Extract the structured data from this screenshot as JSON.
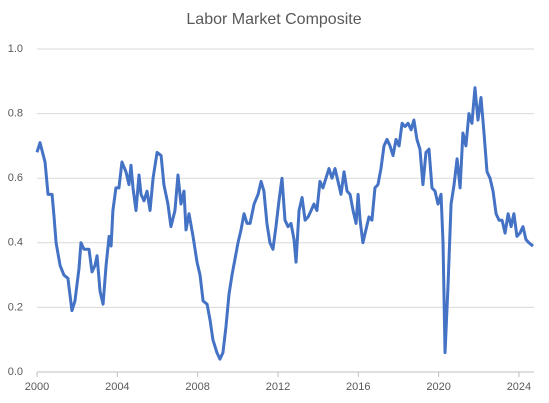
{
  "chart_data": {
    "type": "line",
    "title": "Labor Market Composite",
    "x": [
      2000.0,
      2000.15,
      2000.4,
      2000.55,
      2000.75,
      2000.85,
      2000.95,
      2001.15,
      2001.34,
      2001.54,
      2001.74,
      2001.89,
      2002.09,
      2002.19,
      2002.34,
      2002.59,
      2002.74,
      2002.89,
      2002.99,
      2003.14,
      2003.29,
      2003.44,
      2003.59,
      2003.69,
      2003.78,
      2003.93,
      2004.08,
      2004.23,
      2004.43,
      2004.58,
      2004.68,
      2004.78,
      2004.93,
      2005.08,
      2005.18,
      2005.33,
      2005.48,
      2005.63,
      2005.78,
      2005.98,
      2006.18,
      2006.32,
      2006.52,
      2006.67,
      2006.87,
      2007.02,
      2007.17,
      2007.32,
      2007.42,
      2007.57,
      2007.77,
      2007.97,
      2008.12,
      2008.27,
      2008.47,
      2008.62,
      2008.76,
      2008.96,
      2009.11,
      2009.26,
      2009.41,
      2009.56,
      2009.71,
      2009.86,
      2010.01,
      2010.16,
      2010.31,
      2010.46,
      2010.61,
      2010.81,
      2011.01,
      2011.16,
      2011.3,
      2011.45,
      2011.6,
      2011.75,
      2011.9,
      2012.05,
      2012.2,
      2012.35,
      2012.5,
      2012.65,
      2012.8,
      2012.9,
      2013.05,
      2013.2,
      2013.35,
      2013.5,
      2013.65,
      2013.79,
      2013.94,
      2014.09,
      2014.24,
      2014.39,
      2014.54,
      2014.69,
      2014.84,
      2014.99,
      2015.14,
      2015.29,
      2015.44,
      2015.59,
      2015.74,
      2015.89,
      2015.99,
      2016.09,
      2016.23,
      2016.38,
      2016.53,
      2016.68,
      2016.83,
      2016.98,
      2017.13,
      2017.28,
      2017.43,
      2017.58,
      2017.73,
      2017.88,
      2018.03,
      2018.18,
      2018.33,
      2018.48,
      2018.63,
      2018.77,
      2018.92,
      2019.07,
      2019.22,
      2019.37,
      2019.52,
      2019.67,
      2019.82,
      2019.97,
      2020.12,
      2020.22,
      2020.32,
      2020.47,
      2020.62,
      2020.77,
      2020.92,
      2021.07,
      2021.21,
      2021.36,
      2021.51,
      2021.66,
      2021.81,
      2021.96,
      2022.11,
      2022.26,
      2022.41,
      2022.56,
      2022.71,
      2022.86,
      2023.01,
      2023.16,
      2023.31,
      2023.46,
      2023.61,
      2023.75,
      2023.9,
      2024.05,
      2024.2,
      2024.35,
      2024.5,
      2024.7
    ],
    "series": [
      {
        "name": "Labor Market Composite",
        "color": "#4472c4",
        "values": [
          0.68,
          0.71,
          0.65,
          0.55,
          0.55,
          0.48,
          0.4,
          0.33,
          0.3,
          0.29,
          0.19,
          0.22,
          0.32,
          0.4,
          0.38,
          0.38,
          0.31,
          0.33,
          0.36,
          0.25,
          0.21,
          0.33,
          0.42,
          0.39,
          0.5,
          0.57,
          0.57,
          0.65,
          0.62,
          0.58,
          0.64,
          0.57,
          0.5,
          0.61,
          0.55,
          0.53,
          0.56,
          0.5,
          0.6,
          0.68,
          0.67,
          0.58,
          0.52,
          0.45,
          0.5,
          0.61,
          0.52,
          0.56,
          0.44,
          0.49,
          0.42,
          0.34,
          0.3,
          0.22,
          0.21,
          0.16,
          0.1,
          0.06,
          0.04,
          0.06,
          0.14,
          0.24,
          0.3,
          0.35,
          0.4,
          0.44,
          0.49,
          0.46,
          0.46,
          0.52,
          0.55,
          0.59,
          0.56,
          0.46,
          0.4,
          0.38,
          0.45,
          0.53,
          0.6,
          0.47,
          0.45,
          0.46,
          0.41,
          0.34,
          0.5,
          0.54,
          0.47,
          0.48,
          0.5,
          0.52,
          0.5,
          0.59,
          0.57,
          0.6,
          0.63,
          0.6,
          0.63,
          0.59,
          0.55,
          0.62,
          0.56,
          0.55,
          0.5,
          0.46,
          0.55,
          0.47,
          0.4,
          0.44,
          0.48,
          0.47,
          0.57,
          0.58,
          0.63,
          0.7,
          0.72,
          0.7,
          0.67,
          0.72,
          0.7,
          0.77,
          0.76,
          0.77,
          0.75,
          0.78,
          0.72,
          0.69,
          0.58,
          0.68,
          0.69,
          0.57,
          0.56,
          0.52,
          0.55,
          0.4,
          0.06,
          0.27,
          0.52,
          0.58,
          0.66,
          0.57,
          0.74,
          0.7,
          0.8,
          0.77,
          0.88,
          0.78,
          0.85,
          0.74,
          0.62,
          0.6,
          0.56,
          0.49,
          0.47,
          0.47,
          0.43,
          0.49,
          0.45,
          0.49,
          0.42,
          0.43,
          0.45,
          0.41,
          0.4,
          0.39
        ]
      }
    ],
    "xlim": [
      2000,
      2024.75
    ],
    "xticks": [
      2000,
      2004,
      2008,
      2012,
      2016,
      2020,
      2024
    ],
    "ylim": [
      0,
      1
    ],
    "yticks": [
      {
        "value": 0,
        "label": "0.0"
      },
      {
        "value": 0.2,
        "label": "0.2"
      },
      {
        "value": 0.4,
        "label": "0.4"
      },
      {
        "value": 0.6,
        "label": "0.6"
      },
      {
        "value": 0.8,
        "label": "0.8"
      },
      {
        "value": 1,
        "label": "1.0"
      }
    ],
    "grid": true
  }
}
